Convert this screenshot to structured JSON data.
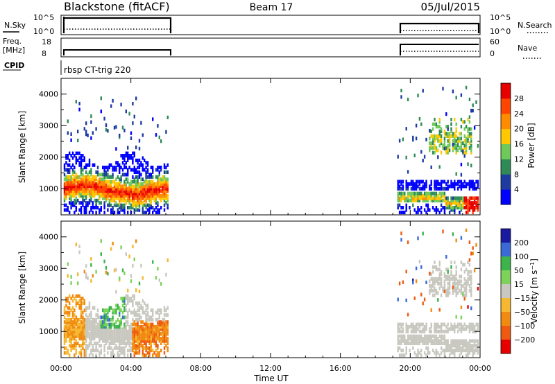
{
  "header": {
    "station": "Blackstone (fitACF)",
    "beam": "Beam 17",
    "date": "05/Jul/2015"
  },
  "top_panels": {
    "nsky_label": "N.Sky",
    "nsky_ticks": [
      "10^5",
      "10^0"
    ],
    "nsearch_label": "N.Search",
    "nsearch_ticks": [
      "10^5",
      "10^0"
    ],
    "freq_label_line1": "Freq.",
    "freq_label_line2": "[MHz]",
    "freq_ticks": [
      "18",
      "8"
    ],
    "nave_label": "Nave",
    "nave_ticks": [
      "60",
      "0"
    ],
    "cpid_label": "CPID",
    "cpid_value": "rbsp CT-trig 220"
  },
  "colors": {
    "power_scale": [
      "#0000ff",
      "#1e3ca0",
      "#2e8b57",
      "#6ec85a",
      "#ffc800",
      "#ff8c00",
      "#ff4500",
      "#e60000"
    ],
    "velocity_scale": [
      "#1a1aa0",
      "#3a6ad6",
      "#3cb44b",
      "#7dd35a",
      "#c8c8c0",
      "#f5b830",
      "#f08a10",
      "#ef5a12",
      "#e60000"
    ]
  },
  "chart_data": [
    {
      "type": "heatmap",
      "name": "power",
      "xlabel": "",
      "ylabel": "Slant Range [km]",
      "ylim": [
        170,
        4500
      ],
      "yticks": [
        "4000",
        "3000",
        "2000",
        "1000"
      ],
      "ytick_values": [
        4000,
        3000,
        2000,
        1000
      ],
      "colorbar": {
        "label": "Power [dB]",
        "ticks": [
          "28",
          "24",
          "20",
          "16",
          "12",
          "8",
          "4"
        ],
        "range": [
          0,
          32
        ]
      },
      "data_intervals_hours": [
        [
          0,
          6.1
        ],
        [
          19.2,
          24
        ]
      ]
    },
    {
      "type": "heatmap",
      "name": "velocity",
      "xlabel": "Time UT",
      "ylabel": "Slant Range [km]",
      "ylim": [
        170,
        4500
      ],
      "yticks": [
        "4000",
        "3000",
        "2000",
        "1000"
      ],
      "ytick_values": [
        4000,
        3000,
        2000,
        1000
      ],
      "colorbar": {
        "label": "Velocity [m s^-1]",
        "ticks": [
          "200",
          "100",
          "50",
          "15",
          "-15",
          "-50",
          "-100",
          "-200"
        ]
      },
      "xticks": [
        "00:00",
        "04:00",
        "08:00",
        "12:00",
        "16:00",
        "20:00",
        "00:00"
      ],
      "xtick_hours": [
        0,
        4,
        8,
        12,
        16,
        20,
        24
      ],
      "data_intervals_hours": [
        [
          0,
          6.1
        ],
        [
          19.2,
          24
        ]
      ]
    }
  ]
}
